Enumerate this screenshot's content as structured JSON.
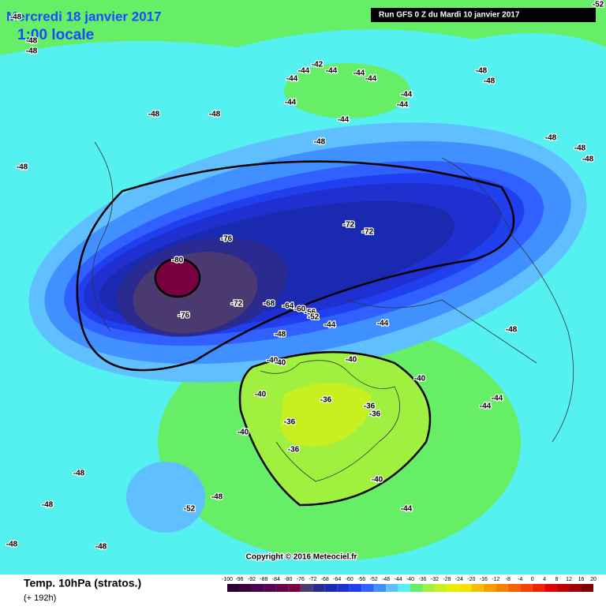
{
  "header": {
    "date": "Mercredi 18 janvier 2017",
    "time": "1:00 locale",
    "run": "Run GFS 0 Z du Mardi 10 janvier 2017"
  },
  "footer": {
    "title": "Temp. 10hPa (stratos.)",
    "lead": "(+ 192h)",
    "copyright": "Copyright © 2016 Meteociel.fr"
  },
  "contour_labels": [
    -48,
    -48,
    -48,
    -52,
    -44,
    -44,
    -42,
    -44,
    -44,
    -44,
    -44,
    -44,
    -44,
    -44,
    -48,
    -48,
    -48,
    -48,
    -48,
    -48,
    -48,
    -48,
    -48,
    -48,
    -48,
    -48,
    -48,
    -48,
    -48,
    -48,
    -52,
    -44,
    -44,
    -44,
    -44,
    -44,
    -40,
    -40,
    -40,
    -40,
    -40,
    -40,
    -40,
    -36,
    -36,
    -36,
    -36,
    -36,
    -72,
    -72,
    -76,
    -80,
    -76,
    -72,
    -68,
    -64,
    -60,
    -56,
    -52
  ],
  "legend": {
    "labels": [
      -100,
      -96,
      -92,
      -88,
      -84,
      -80,
      -76,
      -72,
      -68,
      -64,
      -60,
      -56,
      -52,
      -48,
      -44,
      -40,
      -36,
      -32,
      -28,
      -24,
      -20,
      -16,
      -12,
      -8,
      -4,
      0,
      4,
      8,
      12,
      16,
      20
    ],
    "colors": [
      "#2a0030",
      "#3a0040",
      "#4a0050",
      "#5a0050",
      "#6a0048",
      "#7a0040",
      "#4a3a70",
      "#2a2a90",
      "#1a2ab0",
      "#2030d0",
      "#2040f0",
      "#3060ff",
      "#4090ff",
      "#60c0ff",
      "#55f0f0",
      "#66ee66",
      "#a0f040",
      "#c8f020",
      "#e8f000",
      "#f8e000",
      "#f8c000",
      "#f8a000",
      "#f88000",
      "#f86000",
      "#f84000",
      "#f02000",
      "#e00000",
      "#c00000",
      "#a00000",
      "#800000"
    ]
  }
}
